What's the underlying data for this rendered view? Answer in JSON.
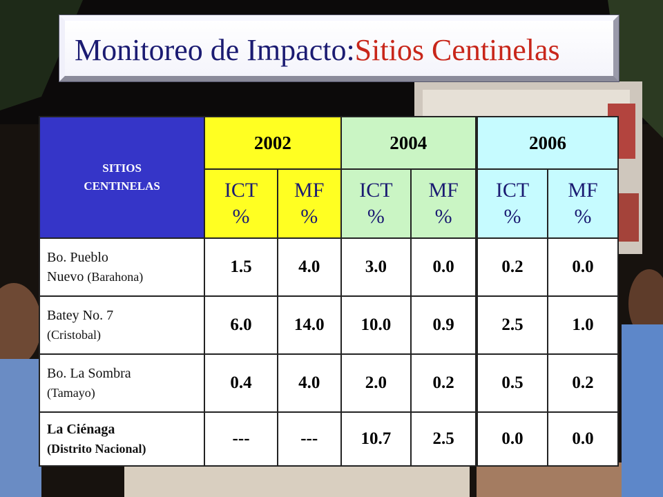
{
  "title": {
    "main": "Monitoreo de Impacto:",
    "accent": "Sitios Centinelas"
  },
  "colors": {
    "title_main": "#1b1b72",
    "title_accent": "#c8261a",
    "sitios_header": "#3535c8",
    "year_2002": "#ffff22",
    "year_2004": "#caf5c4",
    "year_2006": "#c6fbff"
  },
  "table": {
    "corner_header": [
      "SITIOS",
      "CENTINELAS"
    ],
    "years": [
      "2002",
      "2004",
      "2006"
    ],
    "subheader": {
      "ict": [
        "ICT",
        "%"
      ],
      "mf": [
        "MF",
        "%"
      ]
    },
    "rows": [
      {
        "site": "Bo. Pueblo",
        "site2_a": "Nuevo",
        "site2_b": "(Barahona)",
        "values": [
          "1.5",
          "4.0",
          "3.0",
          "0.0",
          "0.2",
          "0.0"
        ]
      },
      {
        "site": "Batey No. 7",
        "site2_a": "",
        "site2_b": "(Cristobal)",
        "values": [
          "6.0",
          "14.0",
          "10.0",
          "0.9",
          "2.5",
          "1.0"
        ]
      },
      {
        "site": "Bo. La Sombra",
        "site2_a": "",
        "site2_b": "(Tamayo)",
        "values": [
          "0.4",
          "4.0",
          "2.0",
          "0.2",
          "0.5",
          "0.2"
        ]
      },
      {
        "site": "La Ciénaga",
        "site2_a": "",
        "site2_b": "(Distrito Nacional)",
        "values": [
          "---",
          "---",
          "10.7",
          "2.5",
          "0.0",
          "0.0"
        ]
      }
    ]
  }
}
